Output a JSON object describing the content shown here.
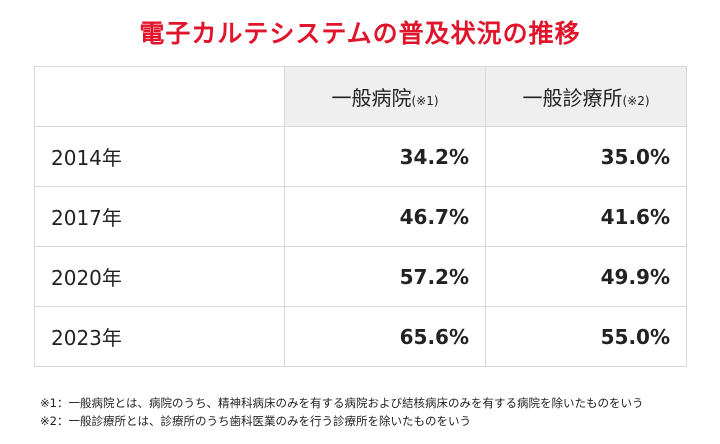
{
  "title": "電子カルテシステムの普及状況の推移",
  "table": {
    "columns": [
      {
        "label": "一般病院",
        "note": "(※1)"
      },
      {
        "label": "一般診療所",
        "note": "(※2)"
      }
    ],
    "rows": [
      {
        "year": "2014年",
        "hospital": "34.2%",
        "clinic": "35.0%"
      },
      {
        "year": "2017年",
        "hospital": "46.7%",
        "clinic": "41.6%"
      },
      {
        "year": "2020年",
        "hospital": "57.2%",
        "clinic": "49.9%"
      },
      {
        "year": "2023年",
        "hospital": "65.6%",
        "clinic": "55.0%"
      }
    ]
  },
  "footnotes": [
    "※1：一般病院とは、病院のうち、精神科病床のみを有する病院および結核病床のみを有する病院を除いたものをいう",
    "※2：一般診療所とは、診療所のうち歯科医業のみを行う診療所を除いたものをいう"
  ]
}
